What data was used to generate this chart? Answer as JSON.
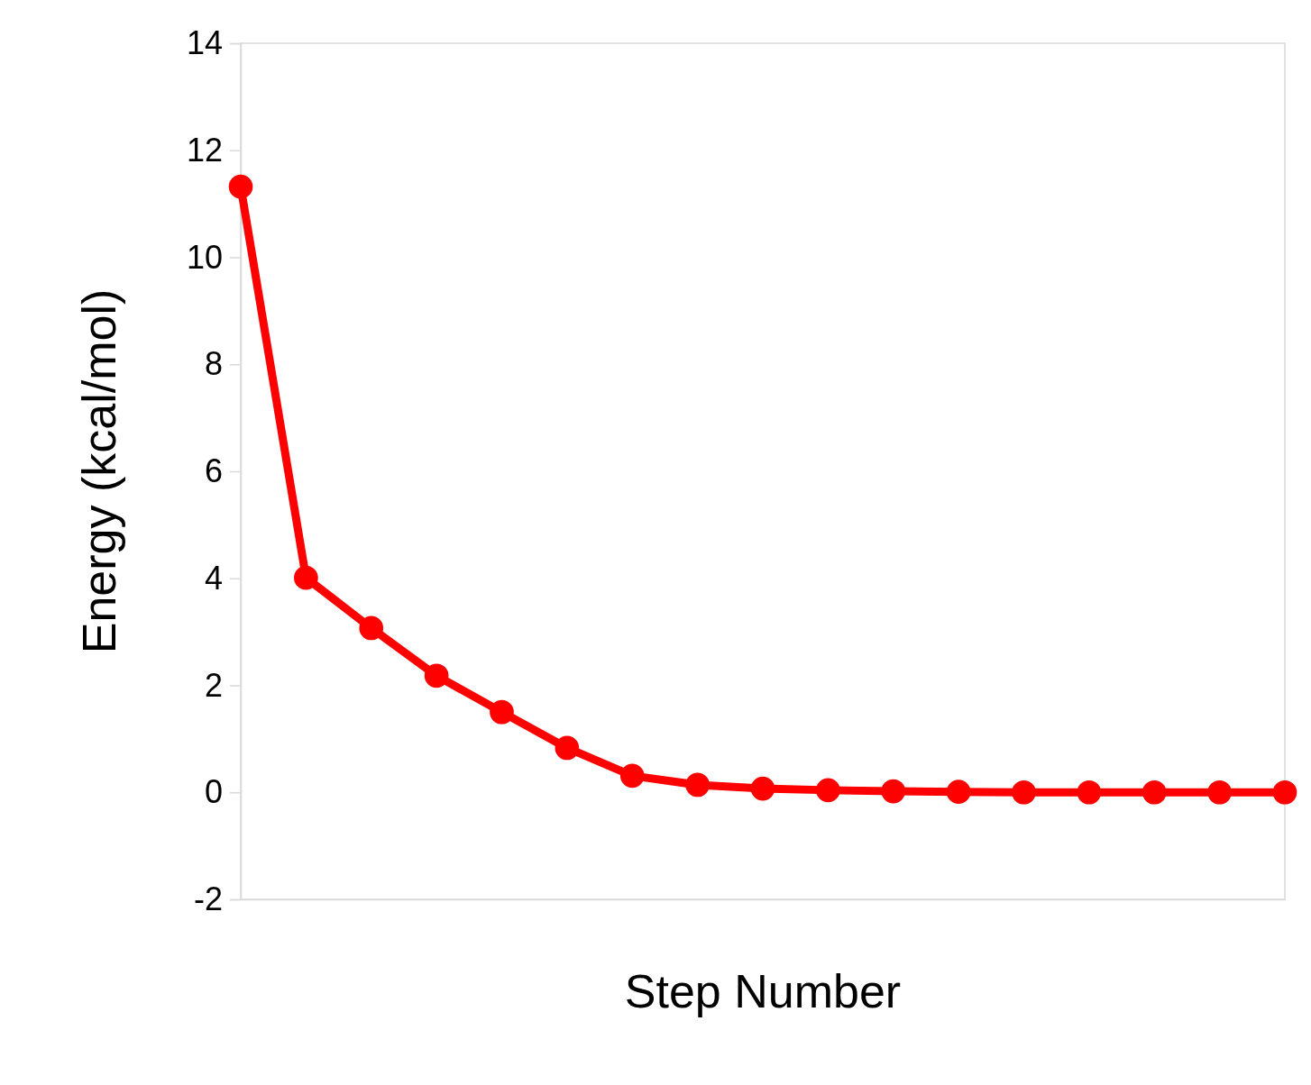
{
  "chart_data": {
    "type": "line",
    "xlabel": "Step Number",
    "ylabel": "Energy (kcal/mol)",
    "categories": [
      null,
      null,
      null,
      null,
      null,
      null,
      null,
      null,
      null,
      null,
      null,
      null,
      null,
      null,
      null,
      null,
      null
    ],
    "series": [
      {
        "color": "#ff0000",
        "values": [
          11.32,
          4.01,
          3.07,
          2.18,
          1.5,
          0.83,
          0.31,
          0.14,
          0.07,
          0.04,
          0.02,
          0.01,
          0,
          0,
          0,
          0,
          0
        ]
      }
    ],
    "ylim": [
      -2,
      14
    ],
    "yticks": [
      -2,
      0,
      2,
      4,
      6,
      8,
      10,
      12,
      14
    ],
    "marker": "circle",
    "line_style": "solid"
  }
}
